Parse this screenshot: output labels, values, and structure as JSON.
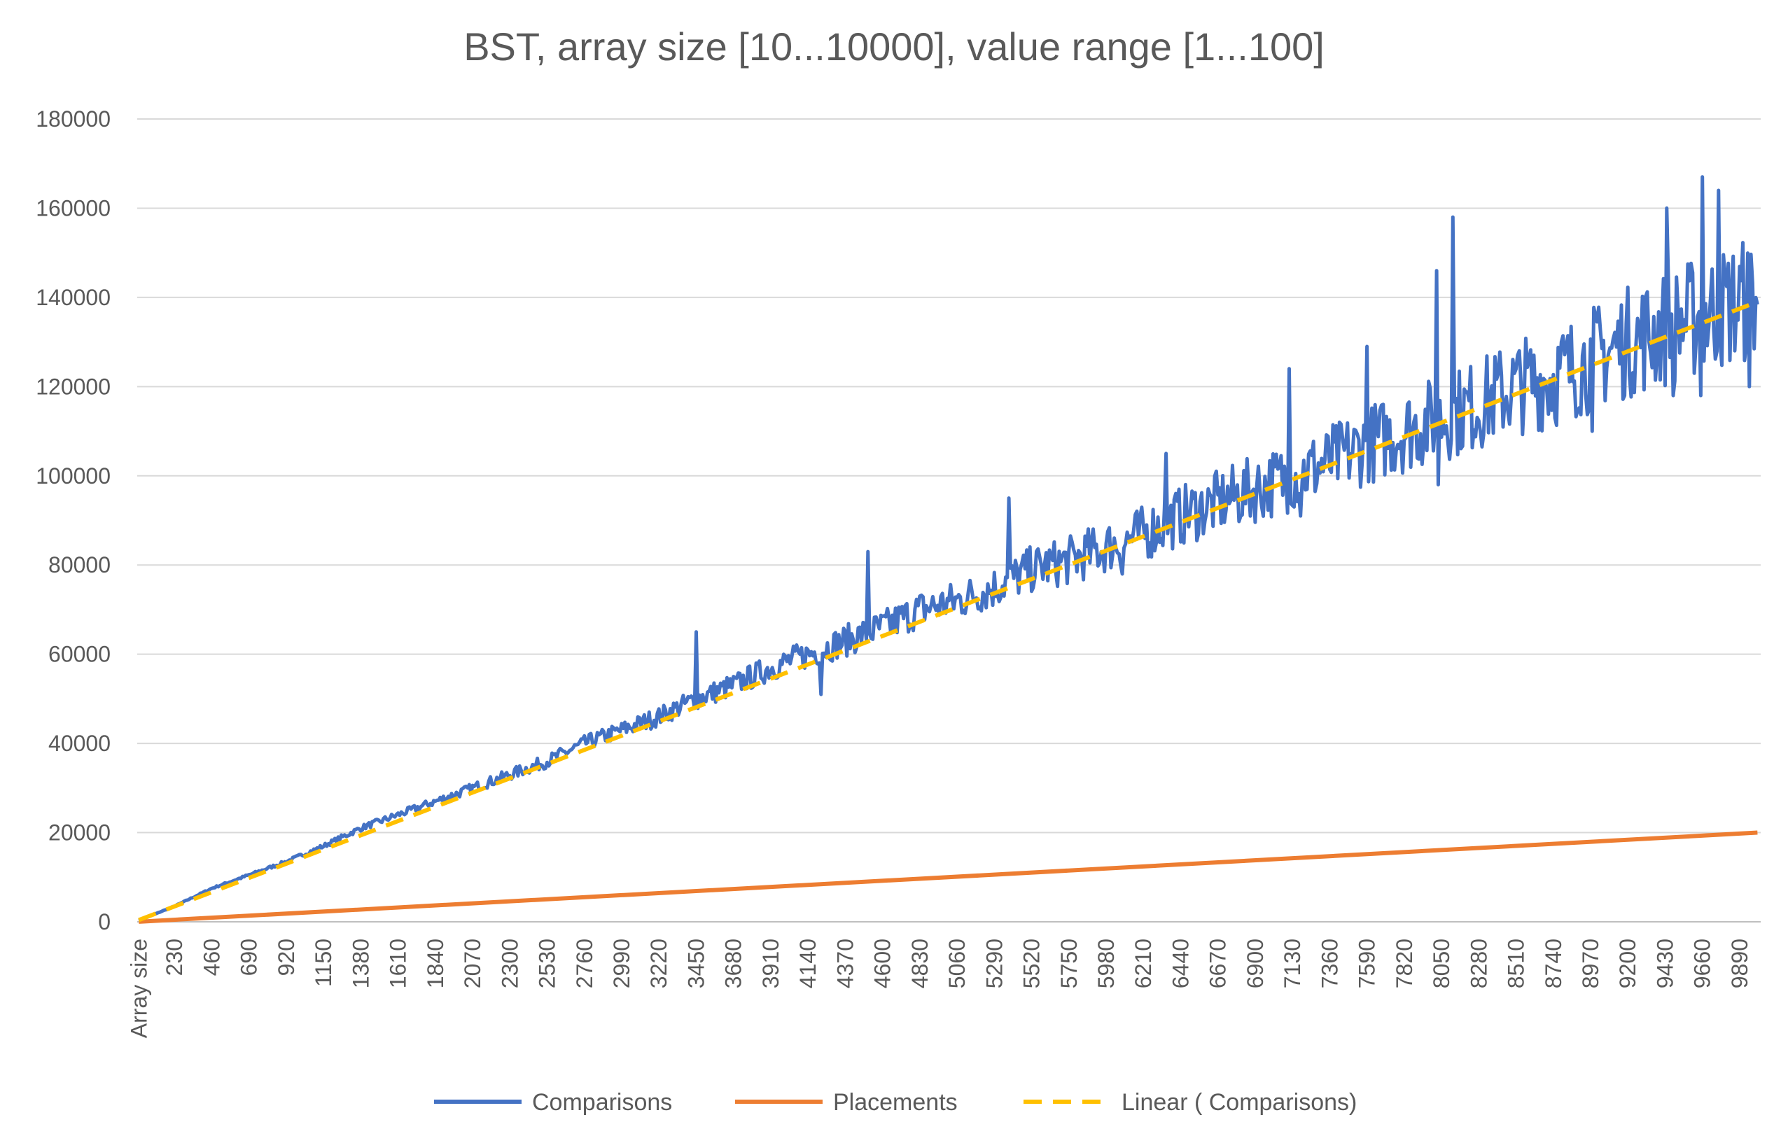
{
  "chart_data": {
    "type": "line",
    "title": "BST, array size [10...10000], value range [1...100]",
    "xlabel": "",
    "ylabel": "",
    "ylim": [
      0,
      180000
    ],
    "yticks": [
      "0",
      "20000",
      "40000",
      "60000",
      "80000",
      "100000",
      "120000",
      "140000",
      "160000",
      "180000"
    ],
    "x_first_label": "Array size",
    "xticks": [
      "230",
      "460",
      "690",
      "920",
      "1150",
      "1380",
      "1610",
      "1840",
      "2070",
      "2300",
      "2530",
      "2760",
      "2990",
      "3220",
      "3450",
      "3680",
      "3910",
      "4140",
      "4370",
      "4600",
      "4830",
      "5060",
      "5290",
      "5520",
      "5750",
      "5980",
      "6210",
      "6440",
      "6670",
      "6900",
      "7130",
      "7360",
      "7590",
      "7820",
      "8050",
      "8280",
      "8510",
      "8740",
      "8970",
      "9200",
      "9430",
      "9660",
      "9890"
    ],
    "grid": true,
    "legend_position": "bottom",
    "series": [
      {
        "name": "Comparisons",
        "color": "#4472c4",
        "x": [
          10,
          230,
          460,
          690,
          920,
          1150,
          1380,
          1610,
          1840,
          2070,
          2300,
          2530,
          2760,
          2990,
          3220,
          3450,
          3680,
          3910,
          4140,
          4370,
          4600,
          4830,
          5060,
          5290,
          5520,
          5750,
          5980,
          6210,
          6440,
          6670,
          6900,
          7130,
          7360,
          7590,
          7820,
          8050,
          8280,
          8510,
          8740,
          8970,
          9200,
          9430,
          9660,
          9890,
          10000
        ],
        "y": [
          300,
          3500,
          7500,
          10500,
          13500,
          17000,
          21000,
          24000,
          27000,
          30000,
          33000,
          36000,
          40000,
          43000,
          46000,
          50000,
          53000,
          57000,
          60000,
          63000,
          66000,
          70000,
          72000,
          75000,
          79000,
          81000,
          84000,
          87000,
          91000,
          94000,
          97000,
          100000,
          103000,
          107000,
          110000,
          113000,
          116000,
          120000,
          122000,
          126000,
          130000,
          133000,
          136000,
          139000,
          140000
        ],
        "peaks": [
          {
            "x": 3450,
            "y": 65000
          },
          {
            "x": 4510,
            "y": 83000
          },
          {
            "x": 5380,
            "y": 95000
          },
          {
            "x": 6350,
            "y": 105000
          },
          {
            "x": 7110,
            "y": 124000
          },
          {
            "x": 7590,
            "y": 129000
          },
          {
            "x": 8020,
            "y": 146000
          },
          {
            "x": 8120,
            "y": 158000
          },
          {
            "x": 9440,
            "y": 160000
          },
          {
            "x": 9660,
            "y": 167000
          },
          {
            "x": 9760,
            "y": 164000
          }
        ],
        "troughs": [
          {
            "x": 4220,
            "y": 51000
          },
          {
            "x": 6080,
            "y": 78000
          },
          {
            "x": 7180,
            "y": 91000
          },
          {
            "x": 8030,
            "y": 98000
          },
          {
            "x": 8980,
            "y": 110000
          },
          {
            "x": 9480,
            "y": 118000
          },
          {
            "x": 9650,
            "y": 118000
          },
          {
            "x": 9950,
            "y": 120000
          }
        ]
      },
      {
        "name": "Placements",
        "color": "#ed7d31",
        "x": [
          10,
          10000
        ],
        "y": [
          20,
          20000
        ]
      },
      {
        "name": "Linear ( Comparisons)",
        "color": "#ffc000",
        "style": "dashed",
        "x": [
          10,
          10000
        ],
        "y": [
          400,
          139000
        ]
      }
    ]
  }
}
